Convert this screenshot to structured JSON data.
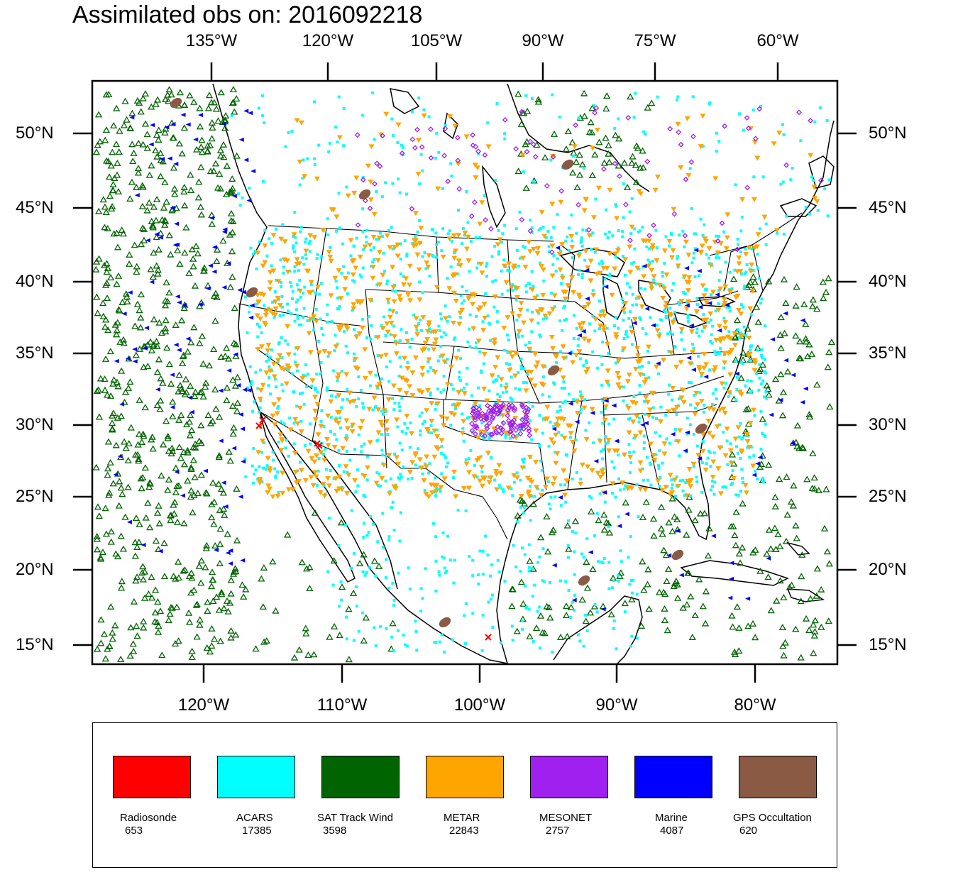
{
  "title": "Assimilated obs on: 2016092218",
  "map": {
    "top_lon_labels": [
      "135°W",
      "120°W",
      "105°W",
      "90°W",
      "75°W",
      "60°W"
    ],
    "bottom_lon_labels": [
      "120°W",
      "110°W",
      "100°W",
      "90°W",
      "80°W"
    ],
    "lat_labels": [
      "50°N",
      "45°N",
      "40°N",
      "35°N",
      "30°N",
      "25°N",
      "20°N",
      "15°N"
    ],
    "frame_color": "#000000",
    "coastline_color": "#000000"
  },
  "legend": [
    {
      "name": "Radiosonde",
      "count": "653",
      "color": "#ff0000",
      "marker": "x"
    },
    {
      "name": "ACARS",
      "count": "17385",
      "color": "#00ffff",
      "marker": "square"
    },
    {
      "name": "SAT Track Wind",
      "count": "3598",
      "color": "#006400",
      "marker": "triangle-up-open"
    },
    {
      "name": "METAR",
      "count": "22843",
      "color": "#ffa500",
      "marker": "triangle-down"
    },
    {
      "name": "MESONET",
      "count": "2757",
      "color": "#a020f0",
      "marker": "diamond"
    },
    {
      "name": "Marine",
      "count": "4087",
      "color": "#0000ff",
      "marker": "triangle-left"
    },
    {
      "name": "GPS Occultation",
      "count": "620",
      "color": "#8b5a44",
      "marker": "blob"
    }
  ]
}
